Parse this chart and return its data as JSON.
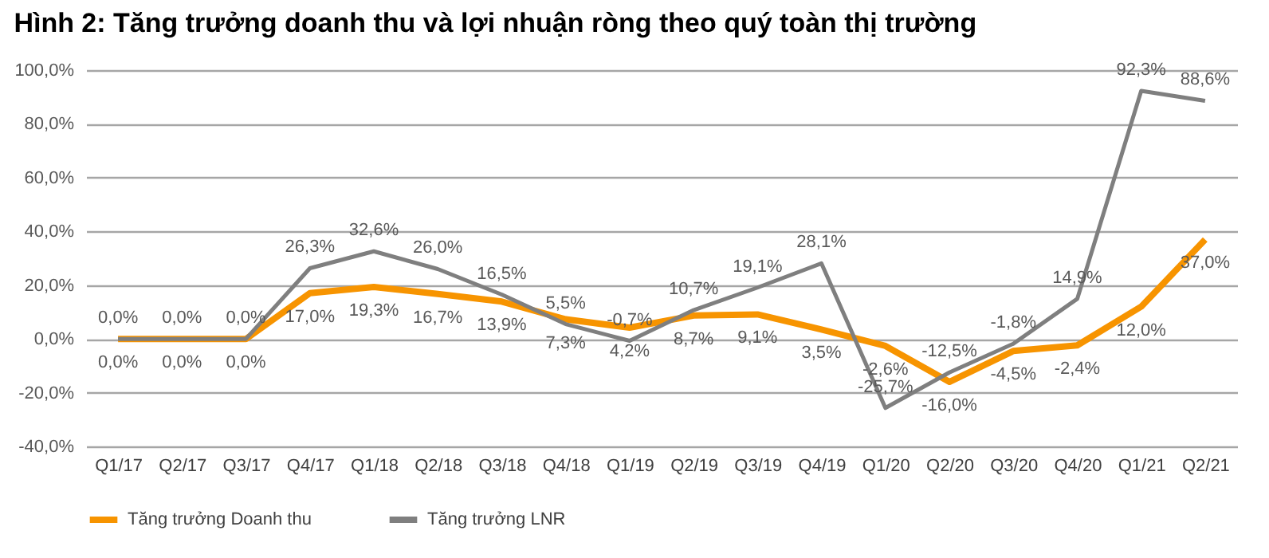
{
  "chart_data": {
    "type": "line",
    "title": "Hình 2: Tăng trưởng doanh thu và lợi nhuận ròng theo quý toàn thị trường",
    "categories": [
      "Q1/17",
      "Q2/17",
      "Q3/17",
      "Q4/17",
      "Q1/18",
      "Q2/18",
      "Q3/18",
      "Q4/18",
      "Q1/19",
      "Q2/19",
      "Q3/19",
      "Q4/19",
      "Q1/20",
      "Q2/20",
      "Q3/20",
      "Q4/20",
      "Q1/21",
      "Q2/21"
    ],
    "series": [
      {
        "name": "Tăng trưởng Doanh thu",
        "color": "#f79400",
        "values": [
          0,
          0,
          0,
          17.0,
          19.3,
          16.7,
          13.9,
          7.3,
          4.2,
          8.7,
          9.1,
          3.5,
          -2.6,
          -16.0,
          -4.5,
          -2.4,
          12.0,
          37.0
        ],
        "value_labels": [
          "0,0%",
          "0,0%",
          "0,0%",
          "17,0%",
          "19,3%",
          "16,7%",
          "13,9%",
          "7,3%",
          "4,2%",
          "8,7%",
          "9,1%",
          "3,5%",
          "-2,6%",
          "-16,0%",
          "-4,5%",
          "-2,4%",
          "12,0%",
          "37,0%"
        ]
      },
      {
        "name": "Tăng trưởng LNR",
        "color": "#7f7f7f",
        "values": [
          0,
          0,
          0,
          26.3,
          32.6,
          26.0,
          16.5,
          5.5,
          -0.7,
          10.7,
          19.1,
          28.1,
          -25.7,
          -12.5,
          -1.8,
          14.9,
          92.3,
          88.6
        ],
        "value_labels": [
          "0,0%",
          "0,0%",
          "0,0%",
          "26,3%",
          "32,6%",
          "26,0%",
          "16,5%",
          "5,5%",
          "-0,7%",
          "10,7%",
          "19,1%",
          "28,1%",
          "-25,7%",
          "-12,5%",
          "-1,8%",
          "14,9%",
          "92,3%",
          "88,6%"
        ]
      }
    ],
    "ylim": [
      -40,
      100
    ],
    "yticks": [
      {
        "value": -40,
        "label": "-40,0%"
      },
      {
        "value": -20,
        "label": "-20,0%"
      },
      {
        "value": 0,
        "label": "0,0%"
      },
      {
        "value": 20,
        "label": "20,0%"
      },
      {
        "value": 40,
        "label": "40,0%"
      },
      {
        "value": 60,
        "label": "60,0%"
      },
      {
        "value": 80,
        "label": "80,0%"
      },
      {
        "value": 100,
        "label": "100,0%"
      }
    ],
    "grid": "y",
    "legend": "bottom",
    "marker": "none",
    "line_style": "solid"
  }
}
